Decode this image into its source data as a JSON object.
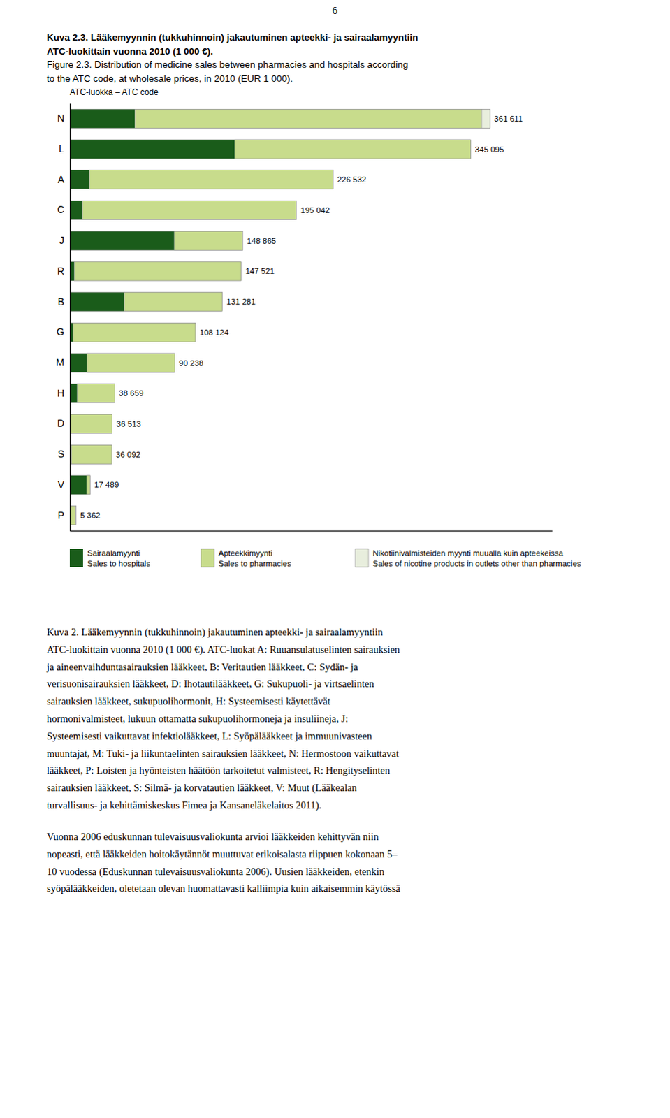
{
  "chart_data": {
    "type": "bar",
    "orientation": "horizontal",
    "stacked": true,
    "page_number": "6",
    "title": [
      "Kuva 2.3.  Lääkemyynnin (tukkuhinnoin) jakautuminen apteekki- ja sairaalamyyntiin",
      "ATC-luokittain vuonna 2010 (1 000 €).",
      "Figure 2.3.  Distribution of medicine sales between pharmacies and hospitals according",
      "to the ATC code, at wholesale prices, in 2010 (EUR 1 000)."
    ],
    "y_label": "ATC-luokka – ATC code",
    "categories": [
      "N",
      "L",
      "A",
      "C",
      "J",
      "R",
      "B",
      "G",
      "M",
      "H",
      "D",
      "S",
      "V",
      "P"
    ],
    "series": [
      {
        "name": "Sairaalamyynti",
        "name_en": "Sales to hospitals",
        "color": "#1a5c1a",
        "values": [
          56000,
          142000,
          17000,
          11000,
          90000,
          4000,
          47000,
          3000,
          15000,
          6500,
          0,
          1500,
          14500,
          0
        ]
      },
      {
        "name": "Apteekkimyynti",
        "name_en": "Sales to pharmacies",
        "color": "#c8dc8c",
        "values": [
          298611,
          203095,
          209532,
          184042,
          58865,
          143521,
          84281,
          105124,
          75238,
          32159,
          36513,
          34592,
          2989,
          5112
        ]
      },
      {
        "name": "Nikotiinivalmisteiden myynti muualla kuin apteekeissa",
        "name_en": "Sales of nicotine products in outlets other than pharmacies",
        "color": "#e8eedd",
        "values": [
          7000,
          0,
          0,
          0,
          0,
          0,
          0,
          0,
          0,
          0,
          0,
          0,
          0,
          250
        ]
      }
    ],
    "totals": [
      361611,
      345095,
      226532,
      195042,
      148865,
      147521,
      131281,
      108124,
      90238,
      38659,
      36513,
      36092,
      17489,
      5362
    ],
    "total_labels": [
      "361 611",
      "345 095",
      "226 532",
      "195 042",
      "148 865",
      "147 521",
      "131 281",
      "108 124",
      "90 238",
      "38 659",
      "36 513",
      "36 092",
      "17 489",
      "5 362"
    ],
    "xlim": [
      0,
      415000
    ],
    "tick_labels": "y",
    "grid": false,
    "body_text": [
      [
        "Kuva 2. Lääkemyynnin (tukkuhinnoin) jakautuminen apteekki- ja sairaalamyyntiin",
        "ATC-luokittain vuonna 2010 (1 000 €). ATC-luokat A: Ruuansulatuselinten sairauksien",
        "ja aineenvaihduntasairauksien lääkkeet, B: Veritautien lääkkeet, C: Sydän- ja",
        "verisuonisairauksien lääkkeet, D: Ihotautilääkkeet, G: Sukupuoli- ja virtsaelinten",
        "sairauksien lääkkeet, sukupuolihormonit, H: Systeemisesti käytettävät",
        "hormonivalmisteet, lukuun ottamatta sukupuolihormoneja ja insuliineja, J:",
        "Systeemisesti vaikuttavat infektiolääkkeet, L: Syöpälääkkeet ja immuunivasteen",
        "muuntajat, M: Tuki- ja liikuntaelinten sairauksien lääkkeet, N: Hermostoon vaikuttavat",
        "lääkkeet, P: Loisten ja hyönteisten häätöön tarkoitetut valmisteet, R: Hengityselinten",
        "sairauksien lääkkeet, S: Silmä- ja korvatautien lääkkeet, V: Muut (Lääkealan",
        "turvallisuus- ja kehittämiskeskus Fimea ja Kansaneläkelaitos 2011)."
      ],
      [
        "Vuonna 2006 eduskunnan tulevaisuusvaliokunta arvioi lääkkeiden kehittyvän niin",
        "nopeasti, että lääkkeiden hoitokäytännöt muuttuvat erikoisalasta riippuen kokonaan 5–",
        "10 vuodessa (Eduskunnan tulevaisuusvaliokunta 2006). Uusien lääkkeiden, etenkin",
        "syöpälääkkeiden, oletetaan olevan huomattavasti kalliimpia kuin aikaisemmin käytössä"
      ]
    ]
  }
}
